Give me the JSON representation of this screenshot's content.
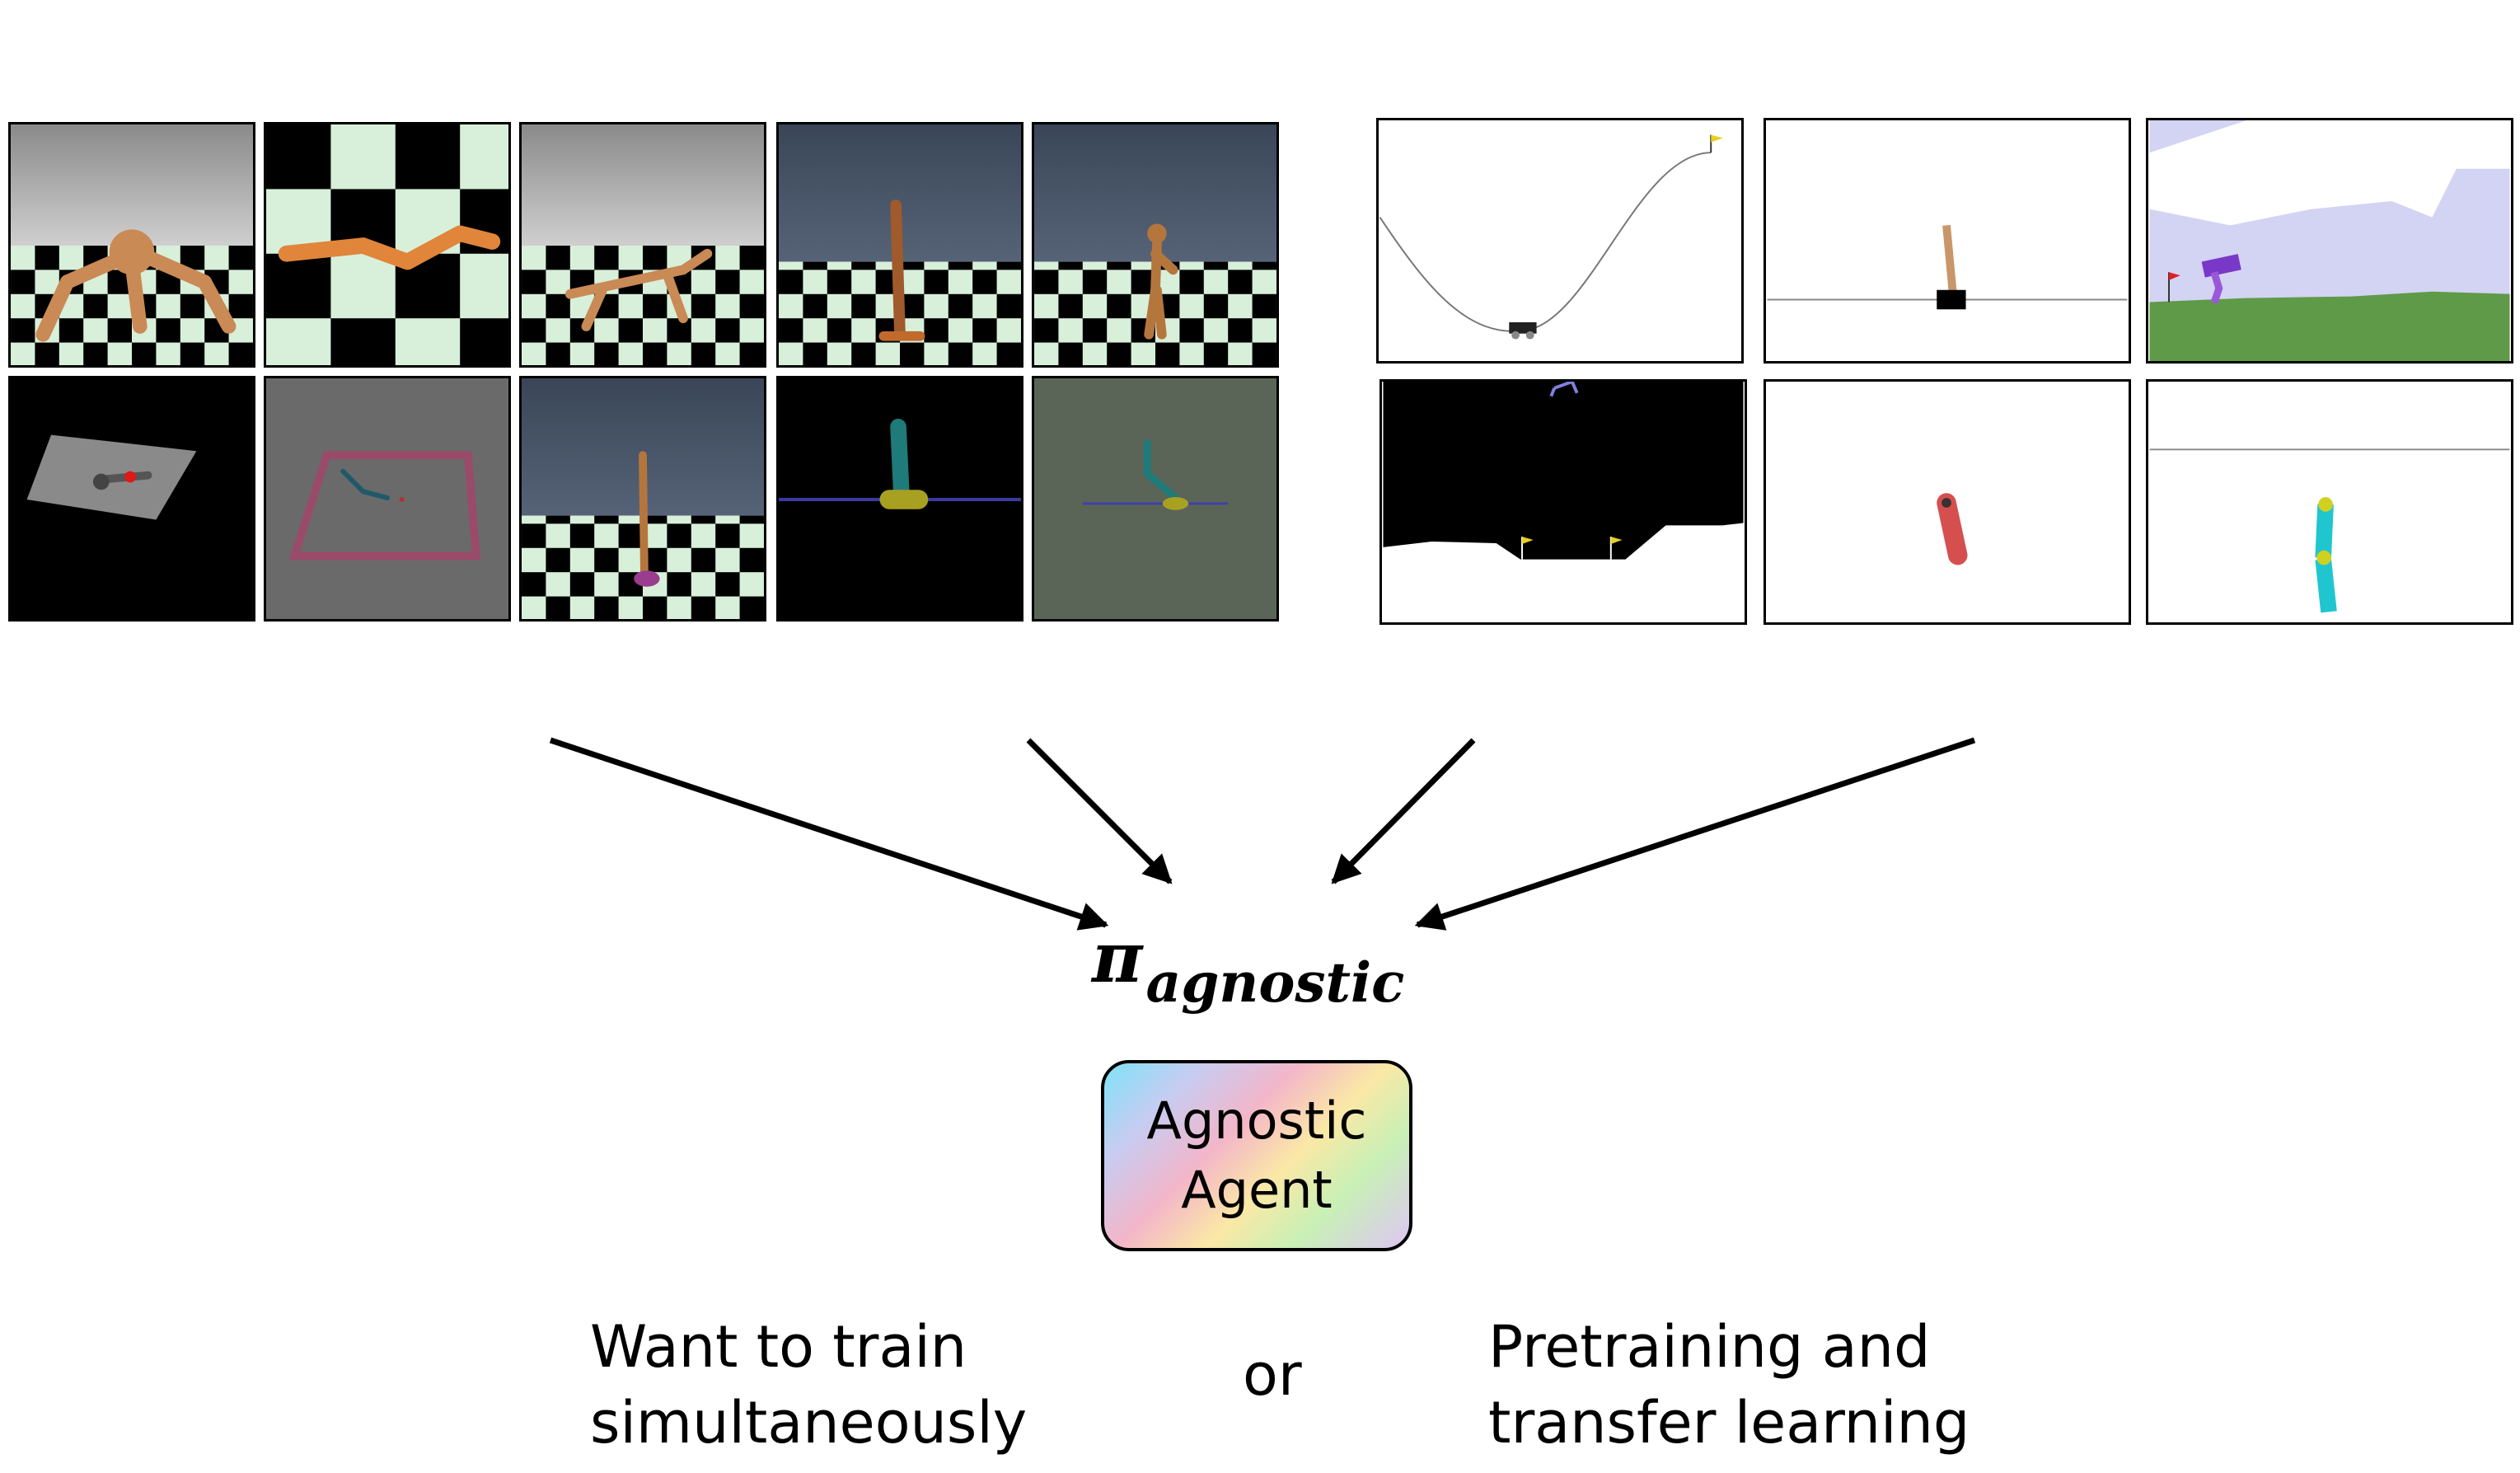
{
  "policy": {
    "symbol": "π",
    "subscript": "agnostic"
  },
  "agent_box": {
    "line1": "Agnostic",
    "line2": "Agent"
  },
  "captions": {
    "left_line1": "Want to train",
    "left_line2": "simultaneously",
    "middle": "or",
    "right_line1": "Pretraining and",
    "right_line2": "transfer learning"
  },
  "colors": {
    "robot_orange": "#c98a55",
    "checker_light": "#d8f0da",
    "sky_gray": "#9a9a9a",
    "sky_blue": "#3e4b5d",
    "walker_purple": "#7a38c8",
    "grass_green": "#5f9a48",
    "cyan_rod": "#1fc6cf",
    "red_rod": "#d64f4f"
  },
  "icons": {
    "left_group": [
      "ant",
      "swimmer-checker",
      "half-cheetah",
      "hopper",
      "humanoid",
      "reacher",
      "swimmer-box",
      "inverted-pendulum-3d",
      "inverted-pendulum-dark",
      "double-pendulum"
    ],
    "right_group": [
      "mountain-car",
      "cart-pole",
      "bipedal-walker",
      "lunar-lander",
      "pendulum-red",
      "acrobot"
    ]
  }
}
